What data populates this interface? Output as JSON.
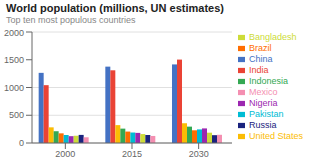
{
  "chart_data": {
    "type": "bar",
    "title": "World population (millions, UN estimates)",
    "subtitle": "Top ten most populous countries",
    "categories": [
      "2000",
      "2015",
      "2030"
    ],
    "series": [
      {
        "name": "China",
        "color": "#4472C4",
        "values": [
          1264,
          1376,
          1416
        ]
      },
      {
        "name": "India",
        "color": "#EA4335",
        "values": [
          1042,
          1310,
          1503
        ]
      },
      {
        "name": "United States",
        "color": "#FBBC04",
        "values": [
          282,
          322,
          356
        ]
      },
      {
        "name": "Indonesia",
        "color": "#34A853",
        "values": [
          212,
          259,
          295
        ]
      },
      {
        "name": "Brazil",
        "color": "#FF6D00",
        "values": [
          174,
          206,
          229
        ]
      },
      {
        "name": "Pakistan",
        "color": "#00BCD4",
        "values": [
          142,
          189,
          245
        ]
      },
      {
        "name": "Nigeria",
        "color": "#9C27B0",
        "values": [
          123,
          182,
          263
        ]
      },
      {
        "name": "Bangladesh",
        "color": "#CDDC39",
        "values": [
          131,
          161,
          186
        ]
      },
      {
        "name": "Russia",
        "color": "#1A237E",
        "values": [
          146,
          144,
          141
        ]
      },
      {
        "name": "Mexico",
        "color": "#F48FB1",
        "values": [
          103,
          127,
          148
        ]
      }
    ],
    "ylim": [
      0,
      2000
    ],
    "yticks": [
      0,
      500,
      1000,
      1500,
      2000
    ],
    "grid": true,
    "legend": "right"
  }
}
